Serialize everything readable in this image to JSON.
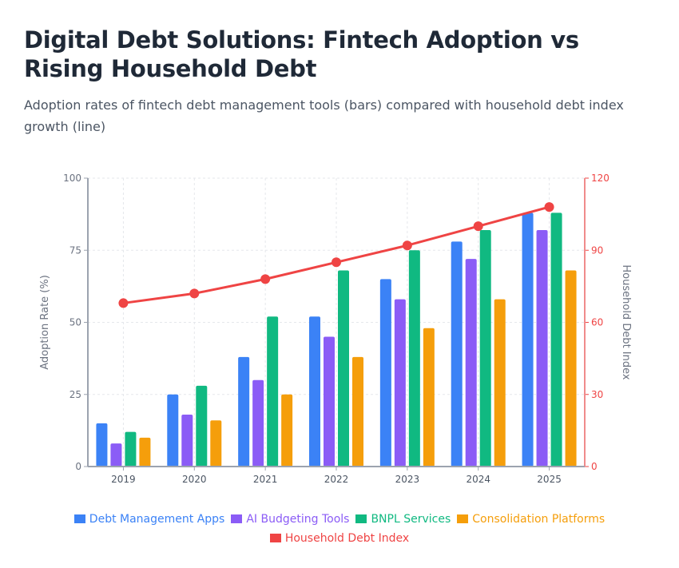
{
  "title": "Digital Debt Solutions: Fintech Adoption vs Rising Household Debt",
  "subtitle": "Adoption rates of fintech debt management tools (bars) compared with household debt index growth (line)",
  "chart_data": {
    "type": "bar",
    "categories": [
      "2019",
      "2020",
      "2021",
      "2022",
      "2023",
      "2024",
      "2025"
    ],
    "series": [
      {
        "name": "Debt Management Apps",
        "type": "bar",
        "axis": "left",
        "color": "#3b82f6",
        "values": [
          15,
          25,
          38,
          52,
          65,
          78,
          88
        ]
      },
      {
        "name": "AI Budgeting Tools",
        "type": "bar",
        "axis": "left",
        "color": "#8b5cf6",
        "values": [
          8,
          18,
          30,
          45,
          58,
          72,
          82
        ]
      },
      {
        "name": "BNPL Services",
        "type": "bar",
        "axis": "left",
        "color": "#10b981",
        "values": [
          12,
          28,
          52,
          68,
          75,
          82,
          88
        ]
      },
      {
        "name": "Consolidation Platforms",
        "type": "bar",
        "axis": "left",
        "color": "#f59e0b",
        "values": [
          10,
          16,
          25,
          38,
          48,
          58,
          68
        ]
      },
      {
        "name": "Household Debt Index",
        "type": "line",
        "axis": "right",
        "color": "#ef4444",
        "values": [
          68,
          72,
          78,
          85,
          92,
          100,
          108
        ]
      }
    ],
    "ylabel": "Adoption Rate (%)",
    "y2label": "Household Debt Index",
    "ylim": [
      0,
      100
    ],
    "y2lim": [
      0,
      120
    ],
    "yticks": [
      "0",
      "25",
      "50",
      "75",
      "100"
    ],
    "y2ticks": [
      "0",
      "30",
      "60",
      "90",
      "120"
    ],
    "grid": true,
    "legend": "bottom"
  }
}
